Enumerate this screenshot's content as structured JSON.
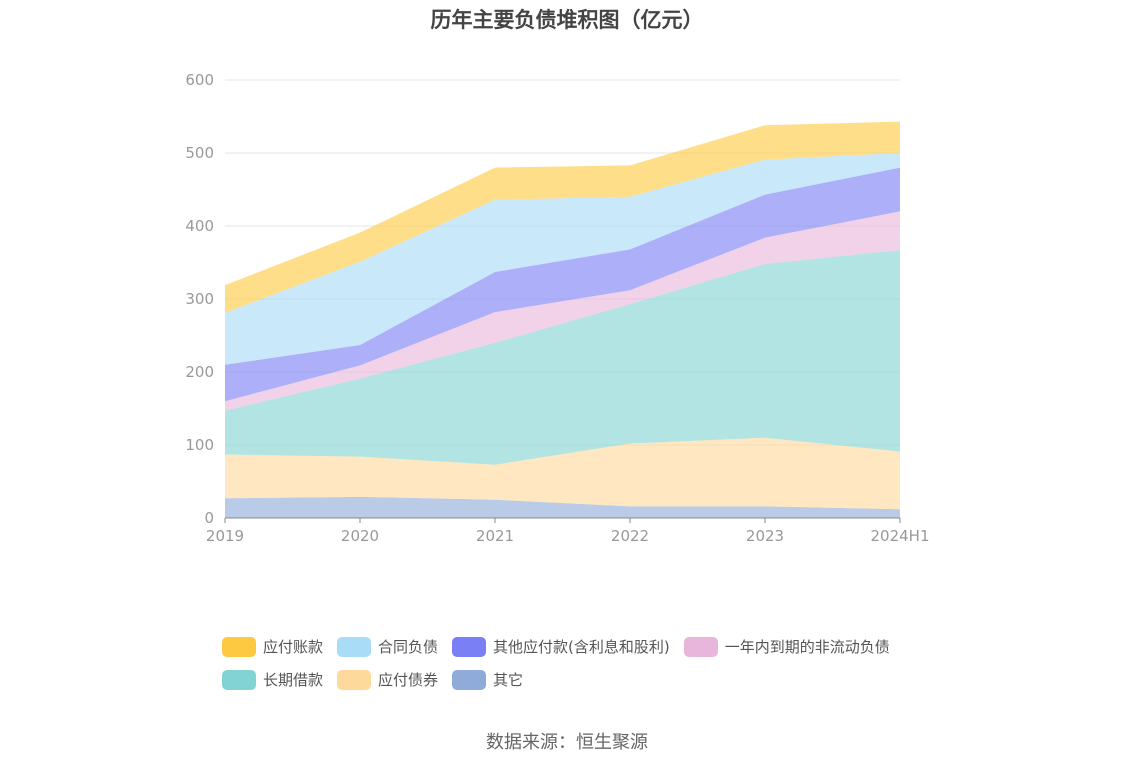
{
  "title": "历年主要负债堆积图（亿元）",
  "source": "数据来源：恒生聚源",
  "chart_data": {
    "type": "area",
    "stacked": true,
    "title": "历年主要负债堆积图（亿元）",
    "x": [
      "2019",
      "2020",
      "2021",
      "2022",
      "2023",
      "2024H1"
    ],
    "ylim": [
      0,
      600
    ],
    "yticks": [
      0,
      100,
      200,
      300,
      400,
      500,
      600
    ],
    "grid": true,
    "legend_position": "bottom",
    "series": [
      {
        "name": "其它",
        "color": "#8fabd9",
        "values": [
          27,
          29,
          25,
          16,
          16,
          12
        ]
      },
      {
        "name": "应付债券",
        "color": "#fdd99b",
        "values": [
          60,
          55,
          48,
          86,
          94,
          79
        ]
      },
      {
        "name": "长期借款",
        "color": "#82d4d4",
        "values": [
          60,
          107,
          167,
          191,
          238,
          276
        ]
      },
      {
        "name": "一年内到期的非流动负债",
        "color": "#e8b6da",
        "values": [
          13,
          18,
          42,
          19,
          36,
          53
        ]
      },
      {
        "name": "其他应付款(含利息和股利)",
        "color": "#7b7ff5",
        "values": [
          50,
          28,
          55,
          56,
          59,
          60
        ]
      },
      {
        "name": "合同负债",
        "color": "#a8dcf7",
        "values": [
          71,
          114,
          99,
          72,
          48,
          20
        ]
      },
      {
        "name": "应付账款",
        "color": "#fdc940",
        "values": [
          38,
          40,
          44,
          43,
          47,
          43
        ]
      }
    ]
  },
  "legend": {
    "row1": [
      {
        "name": "应付账款",
        "color": "#fdc940"
      },
      {
        "name": "合同负债",
        "color": "#a8dcf7"
      },
      {
        "name": "其他应付款(含利息和股利)",
        "color": "#7b7ff5"
      },
      {
        "name": "一年内到期的非流动负债",
        "color": "#e8b6da"
      }
    ],
    "row2": [
      {
        "name": "长期借款",
        "color": "#82d4d4"
      },
      {
        "name": "应付债券",
        "color": "#fdd99b"
      },
      {
        "name": "其它",
        "color": "#8fabd9"
      }
    ]
  }
}
